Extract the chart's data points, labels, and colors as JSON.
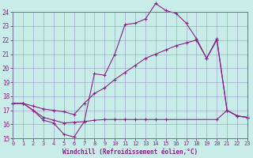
{
  "xlabel": "Windchill (Refroidissement éolien,°C)",
  "bg_color": "#c8ece8",
  "grid_color": "#9898cc",
  "line_color": "#882288",
  "xmin": 0,
  "xmax": 23,
  "ymin": 15,
  "ymax": 24,
  "xticks": [
    0,
    1,
    2,
    3,
    4,
    5,
    6,
    7,
    8,
    9,
    10,
    11,
    12,
    13,
    14,
    15,
    16,
    17,
    18,
    19,
    20,
    21,
    22,
    23
  ],
  "yticks": [
    15,
    16,
    17,
    18,
    19,
    20,
    21,
    22,
    23,
    24
  ],
  "line1_x": [
    0,
    1,
    2,
    3,
    4,
    5,
    6,
    7,
    8,
    9,
    10,
    11,
    12,
    13,
    14,
    15,
    16,
    17,
    18,
    19,
    20,
    21,
    22,
    23
  ],
  "line1_y": [
    17.5,
    17.5,
    17.0,
    16.3,
    16.1,
    15.3,
    15.1,
    16.2,
    19.6,
    19.5,
    21.0,
    23.1,
    23.2,
    23.5,
    24.6,
    24.1,
    23.9,
    23.2,
    22.1,
    20.7,
    22.1,
    17.0,
    16.6,
    16.5
  ],
  "line2_x": [
    0,
    1,
    2,
    3,
    4,
    5,
    6,
    7,
    8,
    9,
    10,
    11,
    12,
    13,
    14,
    15,
    16,
    17,
    18,
    19,
    20,
    21,
    22,
    23
  ],
  "line2_y": [
    17.5,
    17.5,
    17.3,
    17.1,
    17.0,
    16.9,
    16.7,
    17.5,
    18.2,
    18.6,
    19.2,
    19.7,
    20.2,
    20.7,
    21.0,
    21.3,
    21.6,
    21.8,
    22.0,
    20.7,
    22.0,
    17.0,
    16.6,
    16.5
  ],
  "line3_x": [
    0,
    1,
    2,
    3,
    4,
    5,
    6,
    7,
    8,
    9,
    10,
    11,
    12,
    13,
    14,
    15,
    20,
    21,
    22,
    23
  ],
  "line3_y": [
    17.5,
    17.5,
    17.0,
    16.5,
    16.3,
    16.1,
    16.15,
    16.2,
    16.3,
    16.35,
    16.35,
    16.35,
    16.35,
    16.35,
    16.35,
    16.35,
    16.35,
    17.0,
    16.6,
    16.5
  ]
}
